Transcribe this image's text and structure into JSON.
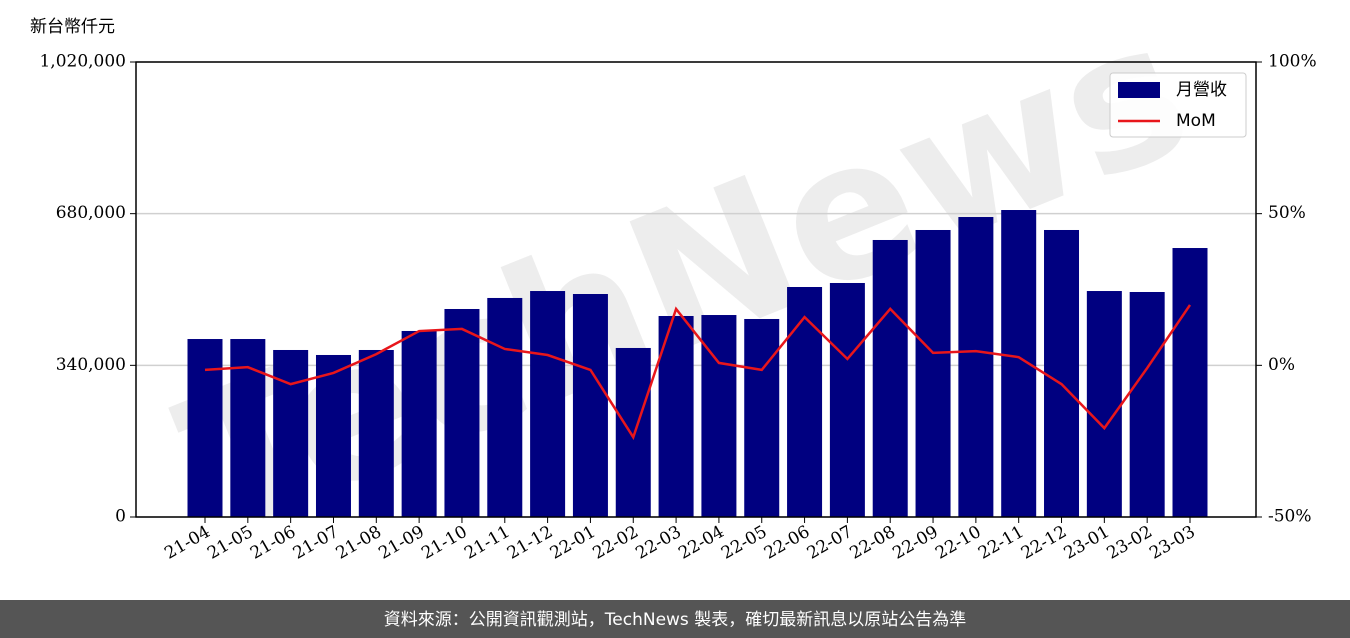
{
  "chart_data": {
    "type": "bar_line",
    "y_label": "新台幣仟元",
    "watermark": "TechNews",
    "footer": "資料來源：公開資訊觀測站，TechNews 製表，確切最新訊息以原站公告為準",
    "categories": [
      "21-04",
      "21-05",
      "21-06",
      "21-07",
      "21-08",
      "21-09",
      "21-10",
      "21-11",
      "21-12",
      "22-01",
      "22-02",
      "22-03",
      "22-04",
      "22-05",
      "22-06",
      "22-07",
      "22-08",
      "22-09",
      "22-10",
      "22-11",
      "22-12",
      "23-01",
      "23-02",
      "23-03"
    ],
    "series": [
      {
        "name": "月營收",
        "type": "bar",
        "color": "#000080",
        "values": [
          399000,
          399000,
          374400,
          363200,
          374400,
          417000,
          466300,
          491000,
          506600,
          499900,
          378900,
          450600,
          452800,
          443900,
          515600,
          524600,
          621000,
          643400,
          672500,
          688200,
          643400,
          506600,
          504400,
          603000
        ]
      },
      {
        "name": "MoM",
        "type": "line",
        "axis": "y2",
        "color": "#e8161b",
        "values": [
          -1.5,
          -0.6,
          -6.2,
          -2.5,
          3.7,
          11.3,
          12,
          5.4,
          3.4,
          -1.5,
          -23.7,
          18.6,
          0.8,
          -1.5,
          15.9,
          2.1,
          18.6,
          4.1,
          4.7,
          2.7,
          -6.2,
          -20.7,
          -0.9,
          19.9
        ]
      }
    ],
    "ylim": [
      0,
      1020000
    ],
    "yticks": [
      0,
      {
        "value": 340000,
        "label": "340,000"
      },
      {
        "value": 680000,
        "label": "680,000"
      },
      {
        "value": 1020000,
        "label": "1,020,000"
      }
    ],
    "y2lim": [
      -50,
      100
    ],
    "y2ticks": [
      {
        "value": -50,
        "label": "-50%"
      },
      {
        "value": 0,
        "label": "0%"
      },
      {
        "value": 50,
        "label": "50%"
      },
      {
        "value": 100,
        "label": "100%"
      }
    ],
    "grid": true,
    "legend": "upper right"
  }
}
